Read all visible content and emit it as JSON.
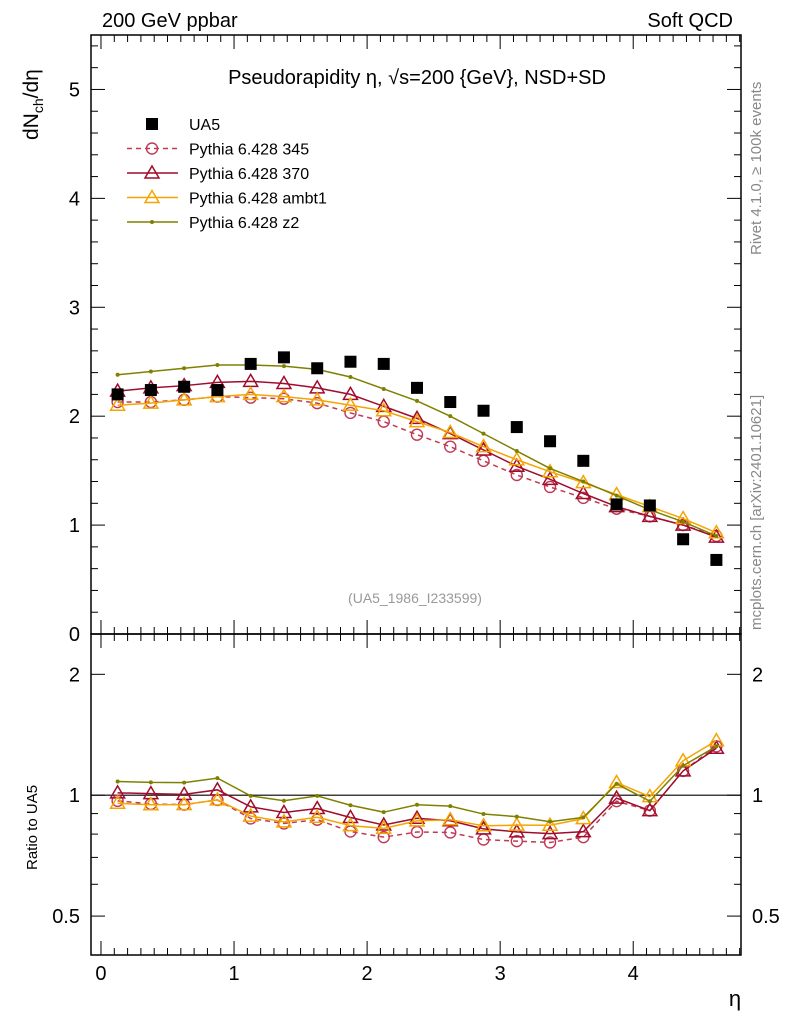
{
  "header": {
    "left": "200 GeV ppbar",
    "right": "Soft QCD"
  },
  "side": {
    "top": "Rivet 4.1.0, ≥ 100k events",
    "bottom": "mcplots.cern.ch [arXiv:2401.10621]"
  },
  "chart_data": [
    {
      "type": "line",
      "title": "Pseudorapidity η, √s=200 {GeV}, NSD+SD",
      "ylabel": "dN_ch/dη",
      "xlabel": "η",
      "annotation": "(UA5_1986_I233599)",
      "xlim": [
        -0.075,
        4.81
      ],
      "ylim": [
        0,
        5.5
      ],
      "yticks": [
        "0",
        "1",
        "2",
        "3",
        "4",
        "5"
      ],
      "x": [
        0.125,
        0.375,
        0.625,
        0.875,
        1.125,
        1.375,
        1.625,
        1.875,
        2.125,
        2.375,
        2.625,
        2.875,
        3.125,
        3.375,
        3.625,
        3.875,
        4.125,
        4.375,
        4.625
      ],
      "legend_position": "top-left",
      "series": [
        {
          "name": "UA5",
          "color": "#000000",
          "marker": "square",
          "line": "none",
          "values": [
            2.2,
            2.24,
            2.27,
            2.24,
            2.48,
            2.54,
            2.44,
            2.5,
            2.48,
            2.26,
            2.13,
            2.05,
            1.9,
            1.77,
            1.59,
            1.19,
            1.18,
            0.87,
            0.68
          ]
        },
        {
          "name": "Pythia 6.428 345",
          "color": "#c03a55",
          "marker": "circle",
          "line": "dashed",
          "values": [
            2.13,
            2.13,
            2.15,
            2.18,
            2.17,
            2.16,
            2.12,
            2.03,
            1.95,
            1.83,
            1.72,
            1.59,
            1.46,
            1.35,
            1.25,
            1.15,
            1.08,
            1.0,
            0.9
          ]
        },
        {
          "name": "Pythia 6.428 370",
          "color": "#a00c2c",
          "marker": "triangle",
          "line": "solid",
          "values": [
            2.23,
            2.26,
            2.28,
            2.31,
            2.32,
            2.3,
            2.26,
            2.2,
            2.09,
            1.98,
            1.84,
            1.69,
            1.54,
            1.42,
            1.29,
            1.17,
            1.08,
            1.0,
            0.89
          ]
        },
        {
          "name": "Pythia 6.428 ambt1",
          "color": "#f5a400",
          "marker": "triangle",
          "line": "solid",
          "values": [
            2.1,
            2.12,
            2.15,
            2.18,
            2.2,
            2.18,
            2.15,
            2.1,
            2.05,
            1.95,
            1.85,
            1.72,
            1.6,
            1.49,
            1.39,
            1.28,
            1.17,
            1.06,
            0.93
          ]
        },
        {
          "name": "Pythia 6.428 z2",
          "color": "#808000",
          "marker": "dot",
          "line": "solid",
          "values": [
            2.38,
            2.41,
            2.44,
            2.47,
            2.47,
            2.46,
            2.43,
            2.36,
            2.25,
            2.14,
            2.0,
            1.84,
            1.68,
            1.52,
            1.4,
            1.27,
            1.14,
            1.03,
            0.9
          ]
        }
      ]
    },
    {
      "type": "line",
      "ylabel": "Ratio to UA5",
      "yscale": "log",
      "ylim": [
        0.4,
        2.52
      ],
      "yticks": [
        "0.5",
        "1",
        "2"
      ],
      "ytick_values": [
        0.5,
        1,
        2
      ],
      "xticks": [
        "0",
        "1",
        "2",
        "3",
        "4"
      ],
      "reference_line": 1
    }
  ]
}
